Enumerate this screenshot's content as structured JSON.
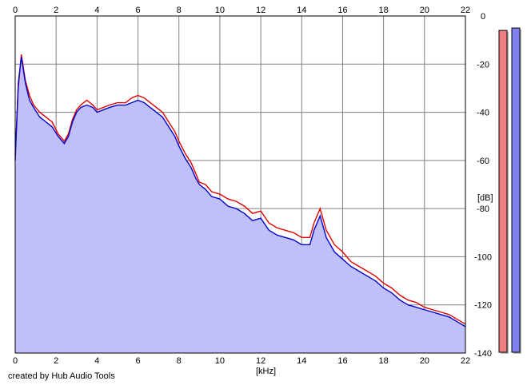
{
  "footer": {
    "credit": "created by Hub Audio Tools"
  },
  "chart_data": {
    "type": "area",
    "xlabel": "[kHz]",
    "ylabel": "[dB]",
    "xlim": [
      0,
      22
    ],
    "ylim": [
      -140,
      0
    ],
    "x_ticks": [
      "0",
      "2",
      "4",
      "6",
      "8",
      "10",
      "12",
      "14",
      "16",
      "18",
      "20",
      "22"
    ],
    "y_ticks": [
      "0",
      "-20",
      "-40",
      "-60",
      "-80",
      "-100",
      "-120",
      "-140"
    ],
    "grid": true,
    "fill_color": "#c0c0f8",
    "series": [
      {
        "color": "#e00000",
        "points": [
          [
            0,
            -58
          ],
          [
            0.15,
            -30
          ],
          [
            0.3,
            -16
          ],
          [
            0.5,
            -27
          ],
          [
            0.7,
            -33
          ],
          [
            0.9,
            -37
          ],
          [
            1.2,
            -40
          ],
          [
            1.5,
            -42
          ],
          [
            1.8,
            -44
          ],
          [
            2.1,
            -49
          ],
          [
            2.4,
            -52
          ],
          [
            2.6,
            -49
          ],
          [
            2.8,
            -43
          ],
          [
            3.0,
            -39
          ],
          [
            3.2,
            -37
          ],
          [
            3.5,
            -35
          ],
          [
            3.8,
            -37
          ],
          [
            4.0,
            -39
          ],
          [
            4.3,
            -38
          ],
          [
            4.6,
            -37
          ],
          [
            5.0,
            -36
          ],
          [
            5.4,
            -36
          ],
          [
            5.7,
            -34
          ],
          [
            6.0,
            -33
          ],
          [
            6.3,
            -34
          ],
          [
            6.6,
            -36
          ],
          [
            6.9,
            -38
          ],
          [
            7.2,
            -40
          ],
          [
            7.5,
            -44
          ],
          [
            7.8,
            -48
          ],
          [
            8.0,
            -52
          ],
          [
            8.3,
            -57
          ],
          [
            8.6,
            -61
          ],
          [
            8.8,
            -65
          ],
          [
            9.0,
            -69
          ],
          [
            9.3,
            -70
          ],
          [
            9.6,
            -73
          ],
          [
            10.0,
            -74
          ],
          [
            10.4,
            -76
          ],
          [
            10.8,
            -77
          ],
          [
            11.2,
            -79
          ],
          [
            11.6,
            -82
          ],
          [
            12.0,
            -81
          ],
          [
            12.4,
            -86
          ],
          [
            12.8,
            -88
          ],
          [
            13.2,
            -89
          ],
          [
            13.6,
            -90
          ],
          [
            14.0,
            -92
          ],
          [
            14.4,
            -92
          ],
          [
            14.6,
            -86
          ],
          [
            14.9,
            -80
          ],
          [
            15.2,
            -89
          ],
          [
            15.6,
            -95
          ],
          [
            16.0,
            -98
          ],
          [
            16.4,
            -102
          ],
          [
            16.8,
            -104
          ],
          [
            17.2,
            -106
          ],
          [
            17.6,
            -108
          ],
          [
            18.0,
            -111
          ],
          [
            18.4,
            -113
          ],
          [
            18.8,
            -116
          ],
          [
            19.2,
            -118
          ],
          [
            19.6,
            -119
          ],
          [
            20.0,
            -121
          ],
          [
            20.4,
            -122
          ],
          [
            20.8,
            -123
          ],
          [
            21.2,
            -124
          ],
          [
            21.6,
            -126
          ],
          [
            22.0,
            -128
          ]
        ]
      },
      {
        "color": "#0000d0",
        "points": [
          [
            0,
            -60
          ],
          [
            0.15,
            -28
          ],
          [
            0.3,
            -17
          ],
          [
            0.5,
            -28
          ],
          [
            0.7,
            -35
          ],
          [
            0.9,
            -38
          ],
          [
            1.2,
            -42
          ],
          [
            1.5,
            -44
          ],
          [
            1.8,
            -46
          ],
          [
            2.1,
            -50
          ],
          [
            2.4,
            -53
          ],
          [
            2.6,
            -50
          ],
          [
            2.8,
            -44
          ],
          [
            3.0,
            -40
          ],
          [
            3.2,
            -38
          ],
          [
            3.5,
            -37
          ],
          [
            3.8,
            -38
          ],
          [
            4.0,
            -40
          ],
          [
            4.3,
            -39
          ],
          [
            4.6,
            -38
          ],
          [
            5.0,
            -37
          ],
          [
            5.4,
            -37
          ],
          [
            5.7,
            -36
          ],
          [
            6.0,
            -35
          ],
          [
            6.3,
            -36
          ],
          [
            6.6,
            -38
          ],
          [
            6.9,
            -40
          ],
          [
            7.2,
            -42
          ],
          [
            7.5,
            -46
          ],
          [
            7.8,
            -50
          ],
          [
            8.0,
            -54
          ],
          [
            8.3,
            -59
          ],
          [
            8.6,
            -63
          ],
          [
            8.8,
            -67
          ],
          [
            9.0,
            -70
          ],
          [
            9.3,
            -72
          ],
          [
            9.6,
            -75
          ],
          [
            10.0,
            -76
          ],
          [
            10.4,
            -79
          ],
          [
            10.8,
            -80
          ],
          [
            11.2,
            -82
          ],
          [
            11.6,
            -85
          ],
          [
            12.0,
            -84
          ],
          [
            12.4,
            -89
          ],
          [
            12.8,
            -91
          ],
          [
            13.2,
            -92
          ],
          [
            13.6,
            -93
          ],
          [
            14.0,
            -95
          ],
          [
            14.4,
            -95
          ],
          [
            14.6,
            -89
          ],
          [
            14.9,
            -83
          ],
          [
            15.2,
            -92
          ],
          [
            15.6,
            -98
          ],
          [
            16.0,
            -101
          ],
          [
            16.4,
            -104
          ],
          [
            16.8,
            -106
          ],
          [
            17.2,
            -108
          ],
          [
            17.6,
            -110
          ],
          [
            18.0,
            -113
          ],
          [
            18.4,
            -115
          ],
          [
            18.8,
            -118
          ],
          [
            19.2,
            -120
          ],
          [
            19.6,
            -121
          ],
          [
            20.0,
            -122
          ],
          [
            20.4,
            -123
          ],
          [
            20.8,
            -124
          ],
          [
            21.2,
            -125
          ],
          [
            21.6,
            -127
          ],
          [
            22.0,
            -129
          ]
        ]
      }
    ],
    "level_meters": [
      {
        "channel": "left",
        "color": "#f08080",
        "level_db": -6
      },
      {
        "channel": "right",
        "color": "#8080f0",
        "level_db": -5
      }
    ]
  }
}
